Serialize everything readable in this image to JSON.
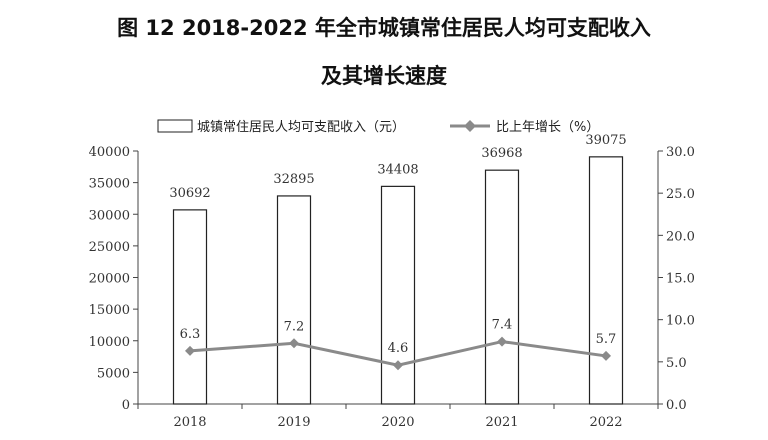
{
  "title": {
    "line1": "图 12    2018-2022 年全市城镇常住居民人均可支配收入",
    "line2": "及其增长速度"
  },
  "chart_data": {
    "type": "bar",
    "categories": [
      "2018",
      "2019",
      "2020",
      "2021",
      "2022"
    ],
    "series": [
      {
        "name": "城镇常住居民人均可支配收入（元）",
        "type": "bar",
        "axis": "left",
        "values": [
          30692,
          32895,
          34408,
          36968,
          39075
        ]
      },
      {
        "name": "比上年增长（%）",
        "type": "line",
        "axis": "right",
        "values": [
          6.3,
          7.2,
          4.6,
          7.4,
          5.7
        ]
      }
    ],
    "y_left": {
      "min": 0,
      "max": 40000,
      "step": 5000,
      "ticks": [
        "0",
        "5000",
        "10000",
        "15000",
        "20000",
        "25000",
        "30000",
        "35000",
        "40000"
      ]
    },
    "y_right": {
      "min": 0,
      "max": 30,
      "step": 5,
      "ticks": [
        "0.0",
        "5.0",
        "10.0",
        "15.0",
        "20.0",
        "25.0",
        "30.0"
      ]
    },
    "legend_position": "top",
    "grid": false,
    "colors": {
      "bar_fill": "#ffffff",
      "bar_stroke": "#222222",
      "line": "#8a8a8a",
      "axis": "#444444"
    }
  }
}
